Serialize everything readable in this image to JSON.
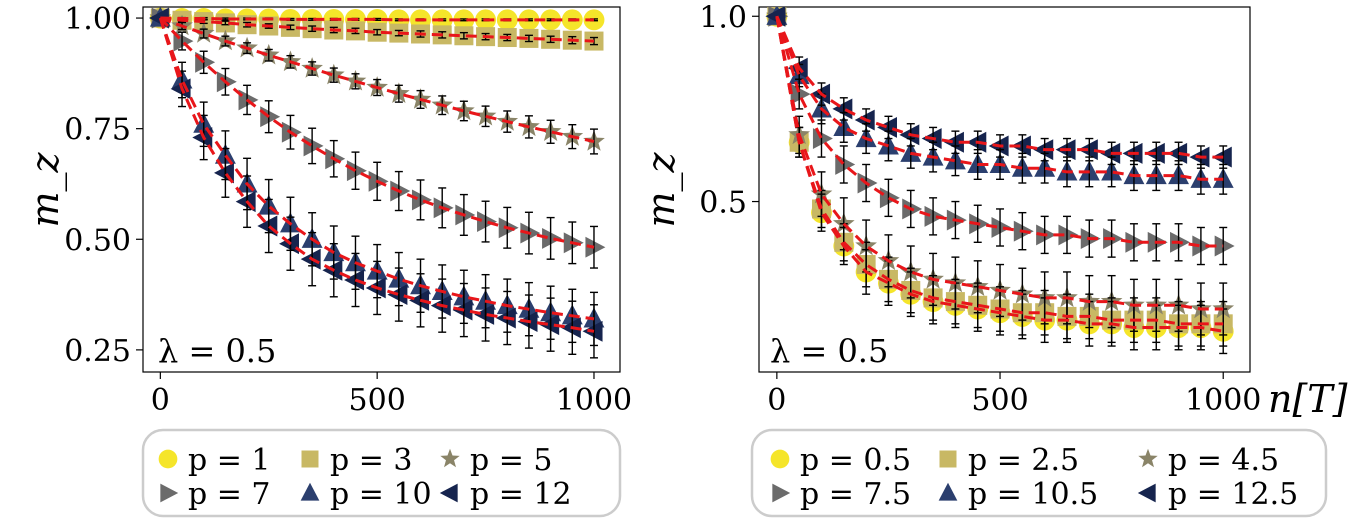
{
  "chart_data": [
    {
      "type": "line",
      "xlabel": "",
      "ylabel": "m_z",
      "annotation": "λ = 0.5",
      "xlim": [
        -40,
        1060
      ],
      "ylim": [
        0.2,
        1.025
      ],
      "xticks": [
        0,
        500,
        1000
      ],
      "xticklabels": [
        "0",
        "500",
        "1000"
      ],
      "yticks": [
        0.25,
        0.5,
        0.75,
        1.0
      ],
      "yticklabels": [
        "0.25",
        "0.50",
        "0.75",
        "1.00"
      ],
      "grid": false,
      "legend_position": "bottom-outside",
      "x": [
        0,
        50,
        100,
        150,
        200,
        250,
        300,
        350,
        400,
        450,
        500,
        550,
        600,
        650,
        700,
        750,
        800,
        850,
        900,
        950,
        1000
      ],
      "series": [
        {
          "name": "p = 1",
          "color": "#f5e52a",
          "marker": "circle",
          "values": [
            1.0,
            0.999,
            0.999,
            0.998,
            0.998,
            0.998,
            0.997,
            0.997,
            0.997,
            0.997,
            0.997,
            0.996,
            0.996,
            0.996,
            0.996,
            0.996,
            0.996,
            0.996,
            0.996,
            0.996,
            0.996
          ],
          "errors": [
            0,
            0.002,
            0.002,
            0.002,
            0.002,
            0.002,
            0.002,
            0.002,
            0.002,
            0.002,
            0.002,
            0.002,
            0.002,
            0.002,
            0.002,
            0.002,
            0.002,
            0.002,
            0.002,
            0.002,
            0.002
          ]
        },
        {
          "name": "p = 3",
          "color": "#c8b864",
          "marker": "square",
          "values": [
            1.0,
            0.995,
            0.992,
            0.989,
            0.985,
            0.982,
            0.979,
            0.976,
            0.973,
            0.971,
            0.968,
            0.966,
            0.964,
            0.962,
            0.96,
            0.958,
            0.956,
            0.954,
            0.952,
            0.95,
            0.948
          ],
          "errors": [
            0,
            0.003,
            0.004,
            0.004,
            0.005,
            0.005,
            0.005,
            0.006,
            0.006,
            0.006,
            0.006,
            0.006,
            0.007,
            0.007,
            0.007,
            0.007,
            0.007,
            0.007,
            0.007,
            0.008,
            0.008
          ]
        },
        {
          "name": "p = 5",
          "color": "#8a8468",
          "marker": "star",
          "values": [
            1.0,
            0.982,
            0.965,
            0.948,
            0.932,
            0.916,
            0.901,
            0.886,
            0.871,
            0.857,
            0.843,
            0.829,
            0.816,
            0.803,
            0.79,
            0.778,
            0.766,
            0.754,
            0.743,
            0.732,
            0.721
          ],
          "errors": [
            0,
            0.008,
            0.01,
            0.011,
            0.012,
            0.013,
            0.014,
            0.015,
            0.016,
            0.017,
            0.018,
            0.019,
            0.02,
            0.021,
            0.022,
            0.023,
            0.024,
            0.025,
            0.026,
            0.027,
            0.028
          ]
        },
        {
          "name": "p = 7",
          "color": "#6b6b6b",
          "marker": "triangle-right",
          "values": [
            1.0,
            0.948,
            0.9,
            0.856,
            0.815,
            0.777,
            0.742,
            0.711,
            0.682,
            0.655,
            0.631,
            0.609,
            0.589,
            0.571,
            0.555,
            0.54,
            0.526,
            0.514,
            0.502,
            0.492,
            0.482
          ],
          "errors": [
            0,
            0.02,
            0.025,
            0.03,
            0.033,
            0.036,
            0.038,
            0.04,
            0.041,
            0.042,
            0.043,
            0.044,
            0.045,
            0.045,
            0.046,
            0.046,
            0.046,
            0.047,
            0.047,
            0.047,
            0.047
          ]
        },
        {
          "name": "p = 10",
          "color": "#2b3f6e",
          "marker": "triangle-up",
          "values": [
            1.0,
            0.86,
            0.76,
            0.69,
            0.625,
            0.575,
            0.535,
            0.5,
            0.47,
            0.447,
            0.428,
            0.41,
            0.395,
            0.382,
            0.37,
            0.36,
            0.35,
            0.342,
            0.334,
            0.327,
            0.32
          ],
          "errors": [
            0,
            0.04,
            0.05,
            0.055,
            0.058,
            0.06,
            0.06,
            0.06,
            0.06,
            0.06,
            0.06,
            0.06,
            0.06,
            0.06,
            0.06,
            0.06,
            0.06,
            0.06,
            0.06,
            0.06,
            0.06
          ]
        },
        {
          "name": "p = 12",
          "color": "#16244e",
          "marker": "triangle-left",
          "values": [
            1.0,
            0.84,
            0.73,
            0.65,
            0.585,
            0.53,
            0.49,
            0.455,
            0.43,
            0.408,
            0.39,
            0.375,
            0.362,
            0.35,
            0.34,
            0.33,
            0.322,
            0.314,
            0.307,
            0.3,
            0.292
          ],
          "errors": [
            0,
            0.04,
            0.05,
            0.055,
            0.058,
            0.06,
            0.06,
            0.06,
            0.06,
            0.06,
            0.06,
            0.06,
            0.06,
            0.06,
            0.06,
            0.06,
            0.06,
            0.06,
            0.06,
            0.06,
            0.06
          ]
        }
      ]
    },
    {
      "type": "line",
      "xlabel": "n[T]",
      "ylabel": "m_z",
      "annotation": "λ = 0.5",
      "xlim": [
        -40,
        1060
      ],
      "ylim": [
        0.04,
        1.025
      ],
      "xticks": [
        0,
        500,
        1000
      ],
      "xticklabels": [
        "0",
        "500",
        "1000"
      ],
      "yticks": [
        0.5,
        1.0
      ],
      "yticklabels": [
        "0.5",
        "1.0"
      ],
      "grid": false,
      "legend_position": "bottom-outside",
      "x": [
        0,
        50,
        100,
        150,
        200,
        250,
        300,
        350,
        400,
        450,
        500,
        550,
        600,
        650,
        700,
        750,
        800,
        850,
        900,
        950,
        1000
      ],
      "series": [
        {
          "name": "p = 0.5",
          "color": "#f5e52a",
          "marker": "circle",
          "values": [
            1.0,
            0.66,
            0.47,
            0.38,
            0.31,
            0.28,
            0.25,
            0.23,
            0.22,
            0.21,
            0.2,
            0.19,
            0.18,
            0.18,
            0.17,
            0.17,
            0.16,
            0.16,
            0.16,
            0.16,
            0.15
          ],
          "errors": [
            0,
            0.04,
            0.05,
            0.05,
            0.06,
            0.06,
            0.06,
            0.06,
            0.06,
            0.06,
            0.06,
            0.06,
            0.06,
            0.06,
            0.06,
            0.06,
            0.06,
            0.06,
            0.06,
            0.06,
            0.06
          ]
        },
        {
          "name": "p = 2.5",
          "color": "#c8b864",
          "marker": "square",
          "values": [
            1.0,
            0.66,
            0.48,
            0.39,
            0.33,
            0.29,
            0.26,
            0.24,
            0.23,
            0.22,
            0.21,
            0.2,
            0.2,
            0.19,
            0.19,
            0.18,
            0.18,
            0.18,
            0.17,
            0.17,
            0.17
          ],
          "errors": [
            0,
            0.04,
            0.05,
            0.05,
            0.06,
            0.06,
            0.06,
            0.06,
            0.06,
            0.06,
            0.06,
            0.06,
            0.06,
            0.06,
            0.06,
            0.06,
            0.06,
            0.06,
            0.06,
            0.06,
            0.06
          ]
        },
        {
          "name": "p = 4.5",
          "color": "#8a8468",
          "marker": "star",
          "values": [
            1.0,
            0.68,
            0.52,
            0.44,
            0.38,
            0.34,
            0.31,
            0.29,
            0.28,
            0.27,
            0.26,
            0.25,
            0.24,
            0.24,
            0.23,
            0.23,
            0.22,
            0.22,
            0.22,
            0.21,
            0.21
          ],
          "errors": [
            0,
            0.05,
            0.06,
            0.07,
            0.07,
            0.07,
            0.07,
            0.07,
            0.07,
            0.07,
            0.07,
            0.07,
            0.07,
            0.07,
            0.07,
            0.07,
            0.07,
            0.07,
            0.07,
            0.07,
            0.07
          ]
        },
        {
          "name": "p = 7.5",
          "color": "#6b6b6b",
          "marker": "triangle-right",
          "values": [
            1.0,
            0.79,
            0.67,
            0.6,
            0.55,
            0.51,
            0.48,
            0.46,
            0.45,
            0.44,
            0.43,
            0.42,
            0.41,
            0.41,
            0.4,
            0.4,
            0.39,
            0.39,
            0.39,
            0.38,
            0.38
          ],
          "errors": [
            0,
            0.04,
            0.05,
            0.05,
            0.05,
            0.05,
            0.05,
            0.05,
            0.05,
            0.05,
            0.05,
            0.05,
            0.05,
            0.05,
            0.05,
            0.05,
            0.05,
            0.05,
            0.05,
            0.05,
            0.05
          ]
        },
        {
          "name": "p = 10.5",
          "color": "#2b3f6e",
          "marker": "triangle-up",
          "values": [
            1.0,
            0.84,
            0.75,
            0.7,
            0.67,
            0.65,
            0.63,
            0.62,
            0.61,
            0.6,
            0.6,
            0.59,
            0.59,
            0.58,
            0.58,
            0.58,
            0.57,
            0.57,
            0.57,
            0.56,
            0.56
          ],
          "errors": [
            0,
            0.03,
            0.04,
            0.04,
            0.04,
            0.04,
            0.04,
            0.04,
            0.04,
            0.04,
            0.04,
            0.04,
            0.04,
            0.04,
            0.04,
            0.04,
            0.04,
            0.04,
            0.04,
            0.04,
            0.04
          ]
        },
        {
          "name": "p = 12.5",
          "color": "#16244e",
          "marker": "triangle-left",
          "values": [
            1.0,
            0.86,
            0.79,
            0.75,
            0.72,
            0.7,
            0.68,
            0.67,
            0.66,
            0.66,
            0.65,
            0.65,
            0.64,
            0.64,
            0.64,
            0.63,
            0.63,
            0.63,
            0.63,
            0.62,
            0.62
          ],
          "errors": [
            0,
            0.03,
            0.03,
            0.03,
            0.03,
            0.03,
            0.03,
            0.03,
            0.03,
            0.03,
            0.03,
            0.03,
            0.03,
            0.03,
            0.03,
            0.03,
            0.03,
            0.03,
            0.03,
            0.03,
            0.03
          ]
        }
      ]
    }
  ]
}
